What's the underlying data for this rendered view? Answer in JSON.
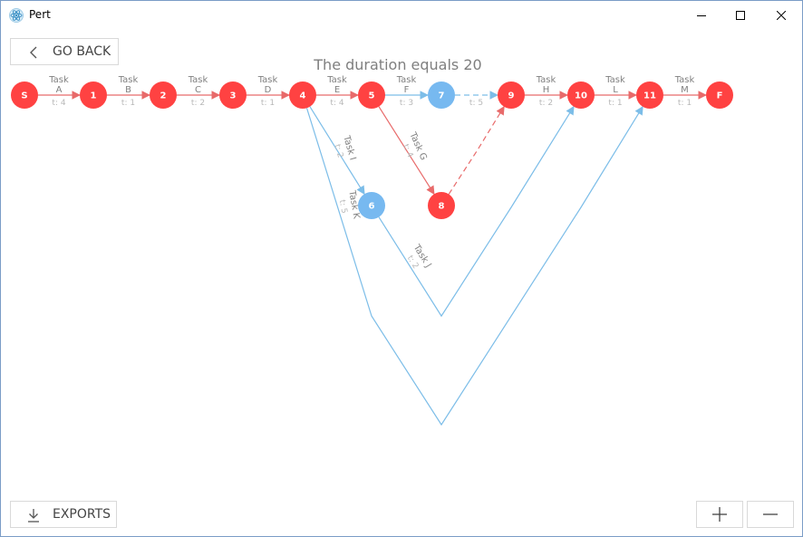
{
  "window": {
    "title": "Pert",
    "icon": "react-atom-icon"
  },
  "toolbar": {
    "go_back_label": "GO BACK",
    "exports_label": "EXPORTS",
    "zoom_in_icon": "plus-icon",
    "zoom_out_icon": "minus-icon"
  },
  "header": {
    "duration_text": "The duration equals 20"
  },
  "colors": {
    "critical": "#ff4242",
    "critical_line": "#e86a6a",
    "noncritical": "#77b9f0",
    "noncritical_line": "#7cbde8"
  },
  "nodes": [
    {
      "id": "S",
      "critical": true
    },
    {
      "id": "1",
      "critical": true
    },
    {
      "id": "2",
      "critical": true
    },
    {
      "id": "3",
      "critical": true
    },
    {
      "id": "4",
      "critical": true
    },
    {
      "id": "5",
      "critical": true
    },
    {
      "id": "7",
      "critical": false
    },
    {
      "id": "9",
      "critical": true
    },
    {
      "id": "10",
      "critical": true
    },
    {
      "id": "11",
      "critical": true
    },
    {
      "id": "F",
      "critical": true
    },
    {
      "id": "6",
      "critical": false
    },
    {
      "id": "8",
      "critical": true
    }
  ],
  "tasks": [
    {
      "name": "Task A",
      "task": "Task",
      "letter": "A",
      "time": "t: 4",
      "from": "S",
      "to": "1",
      "critical": true
    },
    {
      "name": "Task B",
      "task": "Task",
      "letter": "B",
      "time": "t: 1",
      "from": "1",
      "to": "2",
      "critical": true
    },
    {
      "name": "Task C",
      "task": "Task",
      "letter": "C",
      "time": "t: 2",
      "from": "2",
      "to": "3",
      "critical": true
    },
    {
      "name": "Task D",
      "task": "Task",
      "letter": "D",
      "time": "t: 1",
      "from": "3",
      "to": "4",
      "critical": true
    },
    {
      "name": "Task E",
      "task": "Task",
      "letter": "E",
      "time": "t: 4",
      "from": "4",
      "to": "5",
      "critical": true
    },
    {
      "name": "Task F",
      "task": "Task",
      "letter": "F",
      "time": "t: 3",
      "from": "5",
      "to": "7",
      "critical": false
    },
    {
      "name": "Task G",
      "time": "t: 4",
      "from": "5",
      "to": "8",
      "critical": true
    },
    {
      "name": "Task H",
      "task": "Task",
      "letter": "H",
      "time": "t: 2",
      "from": "9",
      "to": "10",
      "critical": true
    },
    {
      "name": "Task I",
      "time": "t: 2",
      "from": "4",
      "to": "6",
      "critical": false
    },
    {
      "name": "Task J",
      "time": "t: 2",
      "from": "6",
      "to": "10",
      "critical": false
    },
    {
      "name": "Task K",
      "time": "t: 5",
      "from": "4",
      "to": "11",
      "critical": false
    },
    {
      "name": "Task L",
      "task": "Task",
      "letter": "L",
      "time": "t: 1",
      "from": "10",
      "to": "11",
      "critical": true
    },
    {
      "name": "Task M",
      "task": "Task",
      "letter": "M",
      "time": "t: 1",
      "from": "11",
      "to": "F",
      "critical": true
    }
  ],
  "dummies": [
    {
      "from": "7",
      "to": "9",
      "critical": false
    },
    {
      "from": "8",
      "to": "9",
      "critical": true
    }
  ]
}
